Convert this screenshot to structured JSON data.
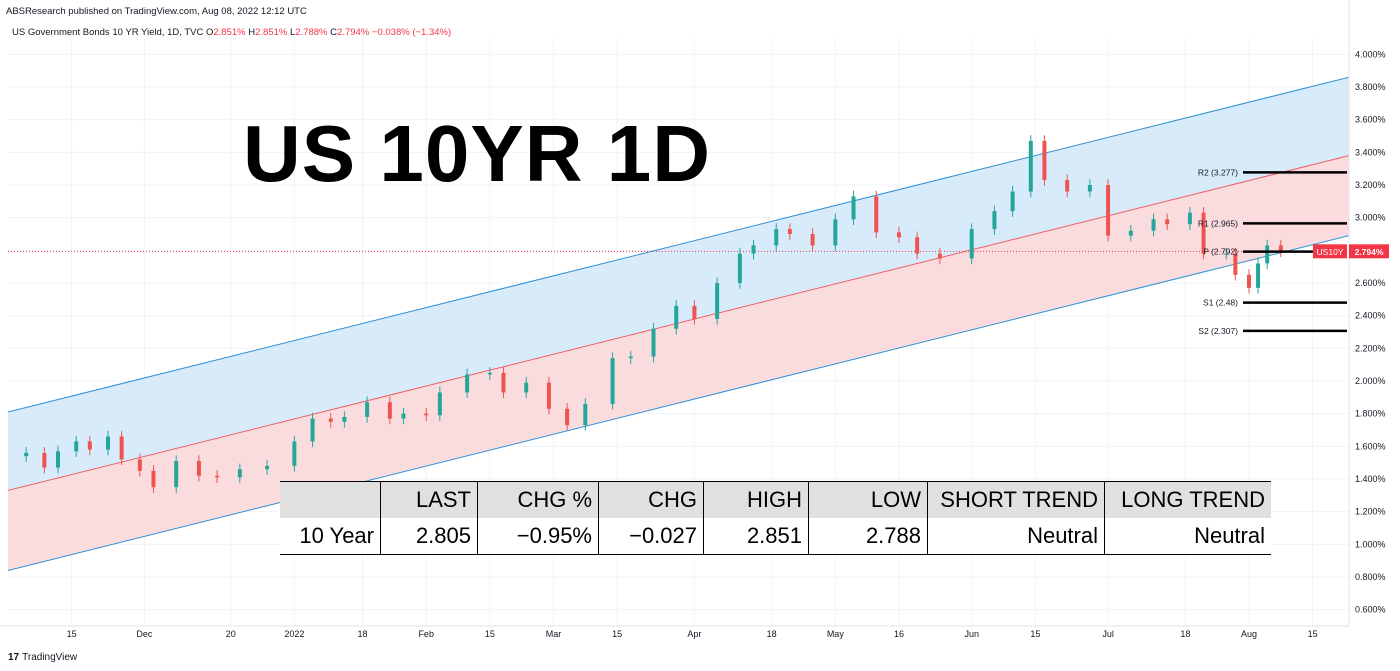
{
  "header": {
    "publisher": "ABSResearch published on TradingView.com, Aug 08, 2022 12:12 UTC",
    "symbol": "US Government Bonds 10 YR Yield, 1D, TVC",
    "ohlc": [
      {
        "k": "O",
        "v": "2.851%"
      },
      {
        "k": "H",
        "v": "2.851%"
      },
      {
        "k": "L",
        "v": "2.788%"
      },
      {
        "k": "C",
        "v": "2.794%"
      },
      {
        "k": "",
        "v": "−0.038% (−1.34%)"
      }
    ]
  },
  "title": "US 10YR 1D",
  "footer": {
    "logo_mark": "17",
    "brand": "TradingView"
  },
  "table": {
    "headers": [
      "",
      "LAST",
      "CHG %",
      "CHG",
      "HIGH",
      "LOW",
      "SHORT TREND",
      "LONG TREND"
    ],
    "row": [
      "10 Year",
      "2.805",
      "−0.95%",
      "−0.027",
      "2.851",
      "2.788",
      "Neutral",
      "Neutral"
    ]
  },
  "chart_data": {
    "type": "candlestick",
    "title": "US Government Bonds 10 YR Yield, 1D, TVC",
    "ylabel": "",
    "ylim": [
      0.5,
      4.1
    ],
    "y_ticks": [
      "4.000%",
      "3.800%",
      "3.600%",
      "3.400%",
      "3.200%",
      "3.000%",
      "2.800%",
      "2.600%",
      "2.400%",
      "2.200%",
      "2.000%",
      "1.800%",
      "1.600%",
      "1.400%",
      "1.200%",
      "1.000%",
      "0.800%",
      "0.600%"
    ],
    "y_tick_values": [
      4.0,
      3.8,
      3.6,
      3.4,
      3.2,
      3.0,
      2.8,
      2.6,
      2.4,
      2.2,
      2.0,
      1.8,
      1.6,
      1.4,
      1.2,
      1.0,
      0.8,
      0.6
    ],
    "x_ticks": [
      {
        "label": "15",
        "date": "2021-11-15"
      },
      {
        "label": "Dec",
        "date": "2021-12-01"
      },
      {
        "label": "20",
        "date": "2021-12-20"
      },
      {
        "label": "2022",
        "date": "2022-01-03"
      },
      {
        "label": "18",
        "date": "2022-01-18"
      },
      {
        "label": "Feb",
        "date": "2022-02-01"
      },
      {
        "label": "15",
        "date": "2022-02-15"
      },
      {
        "label": "Mar",
        "date": "2022-03-01"
      },
      {
        "label": "15",
        "date": "2022-03-15"
      },
      {
        "label": "Apr",
        "date": "2022-04-01"
      },
      {
        "label": "18",
        "date": "2022-04-18"
      },
      {
        "label": "May",
        "date": "2022-05-02"
      },
      {
        "label": "16",
        "date": "2022-05-16"
      },
      {
        "label": "Jun",
        "date": "2022-06-01"
      },
      {
        "label": "15",
        "date": "2022-06-15"
      },
      {
        "label": "Jul",
        "date": "2022-07-01"
      },
      {
        "label": "18",
        "date": "2022-07-18"
      },
      {
        "label": "Aug",
        "date": "2022-08-01"
      },
      {
        "label": "15",
        "date": "2022-08-15"
      }
    ],
    "closes": [
      {
        "date": "2021-11-05",
        "close": 1.56
      },
      {
        "date": "2021-11-09",
        "close": 1.47
      },
      {
        "date": "2021-11-12",
        "close": 1.57
      },
      {
        "date": "2021-11-16",
        "close": 1.63
      },
      {
        "date": "2021-11-19",
        "close": 1.58
      },
      {
        "date": "2021-11-23",
        "close": 1.66
      },
      {
        "date": "2021-11-26",
        "close": 1.52
      },
      {
        "date": "2021-11-30",
        "close": 1.45
      },
      {
        "date": "2021-12-03",
        "close": 1.35
      },
      {
        "date": "2021-12-08",
        "close": 1.51
      },
      {
        "date": "2021-12-13",
        "close": 1.42
      },
      {
        "date": "2021-12-17",
        "close": 1.41
      },
      {
        "date": "2021-12-22",
        "close": 1.46
      },
      {
        "date": "2021-12-28",
        "close": 1.48
      },
      {
        "date": "2022-01-03",
        "close": 1.63
      },
      {
        "date": "2022-01-07",
        "close": 1.77
      },
      {
        "date": "2022-01-11",
        "close": 1.75
      },
      {
        "date": "2022-01-14",
        "close": 1.78
      },
      {
        "date": "2022-01-19",
        "close": 1.87
      },
      {
        "date": "2022-01-24",
        "close": 1.77
      },
      {
        "date": "2022-01-27",
        "close": 1.8
      },
      {
        "date": "2022-02-01",
        "close": 1.79
      },
      {
        "date": "2022-02-04",
        "close": 1.93
      },
      {
        "date": "2022-02-10",
        "close": 2.04
      },
      {
        "date": "2022-02-15",
        "close": 2.05
      },
      {
        "date": "2022-02-18",
        "close": 1.93
      },
      {
        "date": "2022-02-23",
        "close": 1.99
      },
      {
        "date": "2022-02-28",
        "close": 1.83
      },
      {
        "date": "2022-03-04",
        "close": 1.73
      },
      {
        "date": "2022-03-08",
        "close": 1.86
      },
      {
        "date": "2022-03-14",
        "close": 2.14
      },
      {
        "date": "2022-03-18",
        "close": 2.15
      },
      {
        "date": "2022-03-23",
        "close": 2.32
      },
      {
        "date": "2022-03-28",
        "close": 2.46
      },
      {
        "date": "2022-04-01",
        "close": 2.38
      },
      {
        "date": "2022-04-06",
        "close": 2.6
      },
      {
        "date": "2022-04-11",
        "close": 2.78
      },
      {
        "date": "2022-04-14",
        "close": 2.83
      },
      {
        "date": "2022-04-19",
        "close": 2.93
      },
      {
        "date": "2022-04-22",
        "close": 2.9
      },
      {
        "date": "2022-04-27",
        "close": 2.83
      },
      {
        "date": "2022-05-02",
        "close": 2.99
      },
      {
        "date": "2022-05-06",
        "close": 3.13
      },
      {
        "date": "2022-05-11",
        "close": 2.91
      },
      {
        "date": "2022-05-16",
        "close": 2.88
      },
      {
        "date": "2022-05-20",
        "close": 2.78
      },
      {
        "date": "2022-05-25",
        "close": 2.75
      },
      {
        "date": "2022-06-01",
        "close": 2.93
      },
      {
        "date": "2022-06-06",
        "close": 3.04
      },
      {
        "date": "2022-06-10",
        "close": 3.16
      },
      {
        "date": "2022-06-14",
        "close": 3.47
      },
      {
        "date": "2022-06-17",
        "close": 3.23
      },
      {
        "date": "2022-06-22",
        "close": 3.16
      },
      {
        "date": "2022-06-27",
        "close": 3.2
      },
      {
        "date": "2022-07-01",
        "close": 2.89
      },
      {
        "date": "2022-07-06",
        "close": 2.92
      },
      {
        "date": "2022-07-11",
        "close": 2.99
      },
      {
        "date": "2022-07-14",
        "close": 2.96
      },
      {
        "date": "2022-07-19",
        "close": 3.03
      },
      {
        "date": "2022-07-22",
        "close": 2.78
      },
      {
        "date": "2022-07-27",
        "close": 2.78
      },
      {
        "date": "2022-07-29",
        "close": 2.65
      },
      {
        "date": "2022-08-01",
        "close": 2.57
      },
      {
        "date": "2022-08-03",
        "close": 2.72
      },
      {
        "date": "2022-08-05",
        "close": 2.83
      },
      {
        "date": "2022-08-08",
        "close": 2.794
      }
    ],
    "channel": {
      "upper": [
        {
          "date": "2021-11-01",
          "y": 1.81
        },
        {
          "date": "2022-08-23",
          "y": 3.86
        }
      ],
      "middle": [
        {
          "date": "2021-11-01",
          "y": 1.33
        },
        {
          "date": "2022-08-23",
          "y": 3.38
        }
      ],
      "lower": [
        {
          "date": "2021-11-01",
          "y": 0.84
        },
        {
          "date": "2022-08-23",
          "y": 2.89
        }
      ],
      "upper_fill": "#d7ebfa",
      "lower_fill": "#fbdcde",
      "line_color": "#2f8fd6",
      "mid_color": "#f06060"
    },
    "levels": [
      {
        "label": "R2 (3.277)",
        "value": 3.277
      },
      {
        "label": "R1 (2.965)",
        "value": 2.965
      },
      {
        "label": "P (2.792)",
        "value": 2.792
      },
      {
        "label": "S1 (2.48)",
        "value": 2.48
      },
      {
        "label": "S2 (2.307)",
        "value": 2.307
      }
    ],
    "last_price": {
      "symbol": "US10Y",
      "value": 2.794,
      "label": "2.794%",
      "color": "#f23645"
    },
    "colors": {
      "up": "#26a69a",
      "down": "#ef5350"
    },
    "grid": true
  }
}
